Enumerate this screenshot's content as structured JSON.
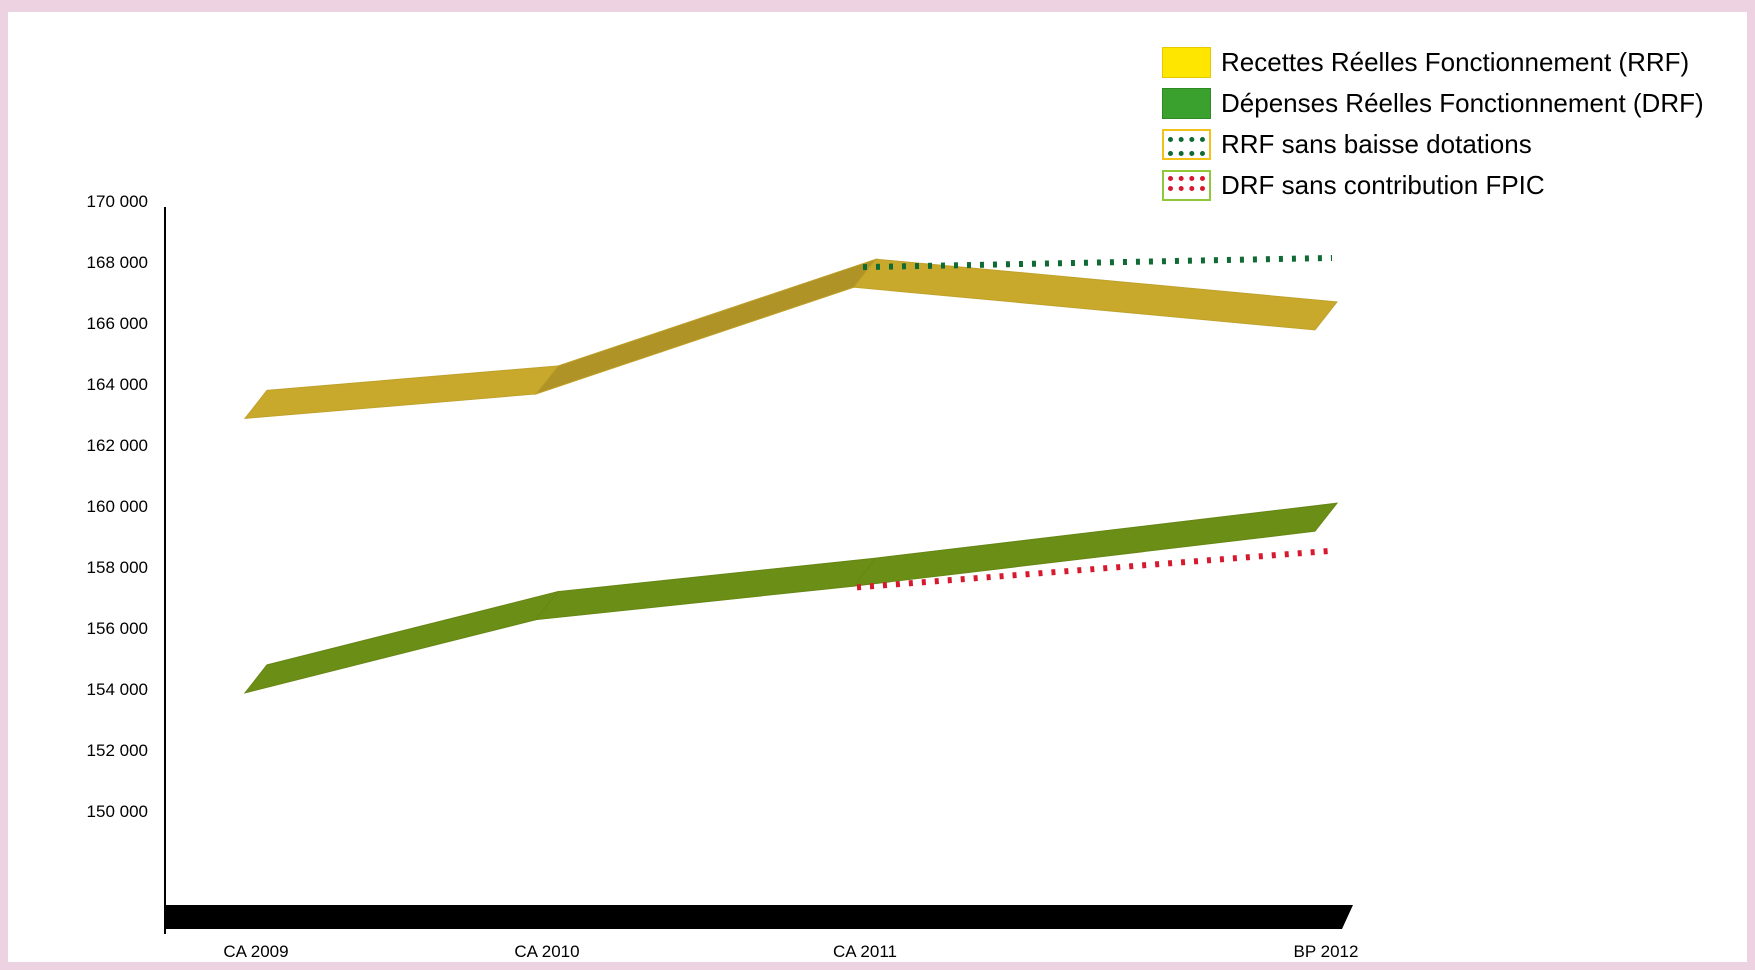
{
  "chart_data": {
    "type": "line",
    "title": "",
    "xlabel": "",
    "ylabel": "",
    "categories": [
      "CA 2009",
      "CA 2010",
      "CA 2011",
      "BP 2012"
    ],
    "y_ticks": [
      "150 000",
      "152 000",
      "154 000",
      "156 000",
      "158 000",
      "160 000",
      "162 000",
      "164 000",
      "166 000",
      "168 000",
      "170 000"
    ],
    "ylim": [
      150000,
      170000
    ],
    "grid": false,
    "legend_position": "top-right",
    "series": [
      {
        "name": "Recettes Réelles Fonctionnement (RRF)",
        "values": [
          163300,
          164100,
          167600,
          166200
        ],
        "color": "#c9a92c",
        "style": "ribbon"
      },
      {
        "name": "Dépenses Réelles Fonctionnement (DRF)",
        "values": [
          154300,
          156700,
          157800,
          159600
        ],
        "color": "#6b8e16",
        "style": "ribbon"
      },
      {
        "name": "RRF sans baisse dotations",
        "values": [
          null,
          null,
          167800,
          168100
        ],
        "color": "#0f6a34",
        "style": "dotted"
      },
      {
        "name": "DRF sans contribution FPIC",
        "values": [
          null,
          null,
          157300,
          158500
        ],
        "color": "#d7192f",
        "style": "dotted"
      }
    ]
  }
}
